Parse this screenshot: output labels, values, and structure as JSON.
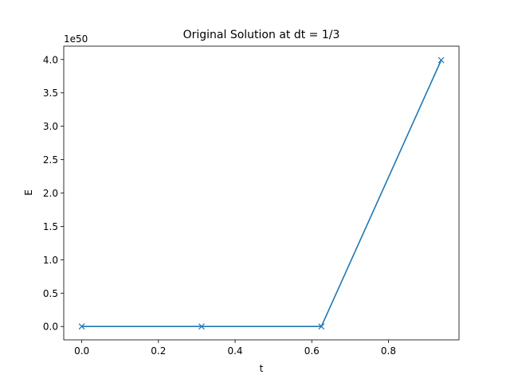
{
  "chart_data": {
    "type": "line",
    "title": "Original Solution at dt = 1/3",
    "xlabel": "t",
    "ylabel": "E",
    "y_offset_label": "1e50",
    "xlim": [
      -0.047,
      0.984
    ],
    "ylim": [
      -0.2,
      4.2
    ],
    "x_ticks": [
      0.0,
      0.2,
      0.4,
      0.6,
      0.8
    ],
    "x_tick_labels": [
      "0.0",
      "0.2",
      "0.4",
      "0.6",
      "0.8"
    ],
    "y_ticks": [
      0.0,
      0.5,
      1.0,
      1.5,
      2.0,
      2.5,
      3.0,
      3.5,
      4.0
    ],
    "y_tick_labels": [
      "0.0",
      "0.5",
      "1.0",
      "1.5",
      "2.0",
      "2.5",
      "3.0",
      "3.5",
      "4.0"
    ],
    "grid": false,
    "marker": "x",
    "color": "#1f77b4",
    "series": [
      {
        "x": [
          0.0,
          0.3125,
          0.625,
          0.9375
        ],
        "y": [
          0.0,
          0.0,
          0.0,
          3.99
        ]
      }
    ]
  }
}
